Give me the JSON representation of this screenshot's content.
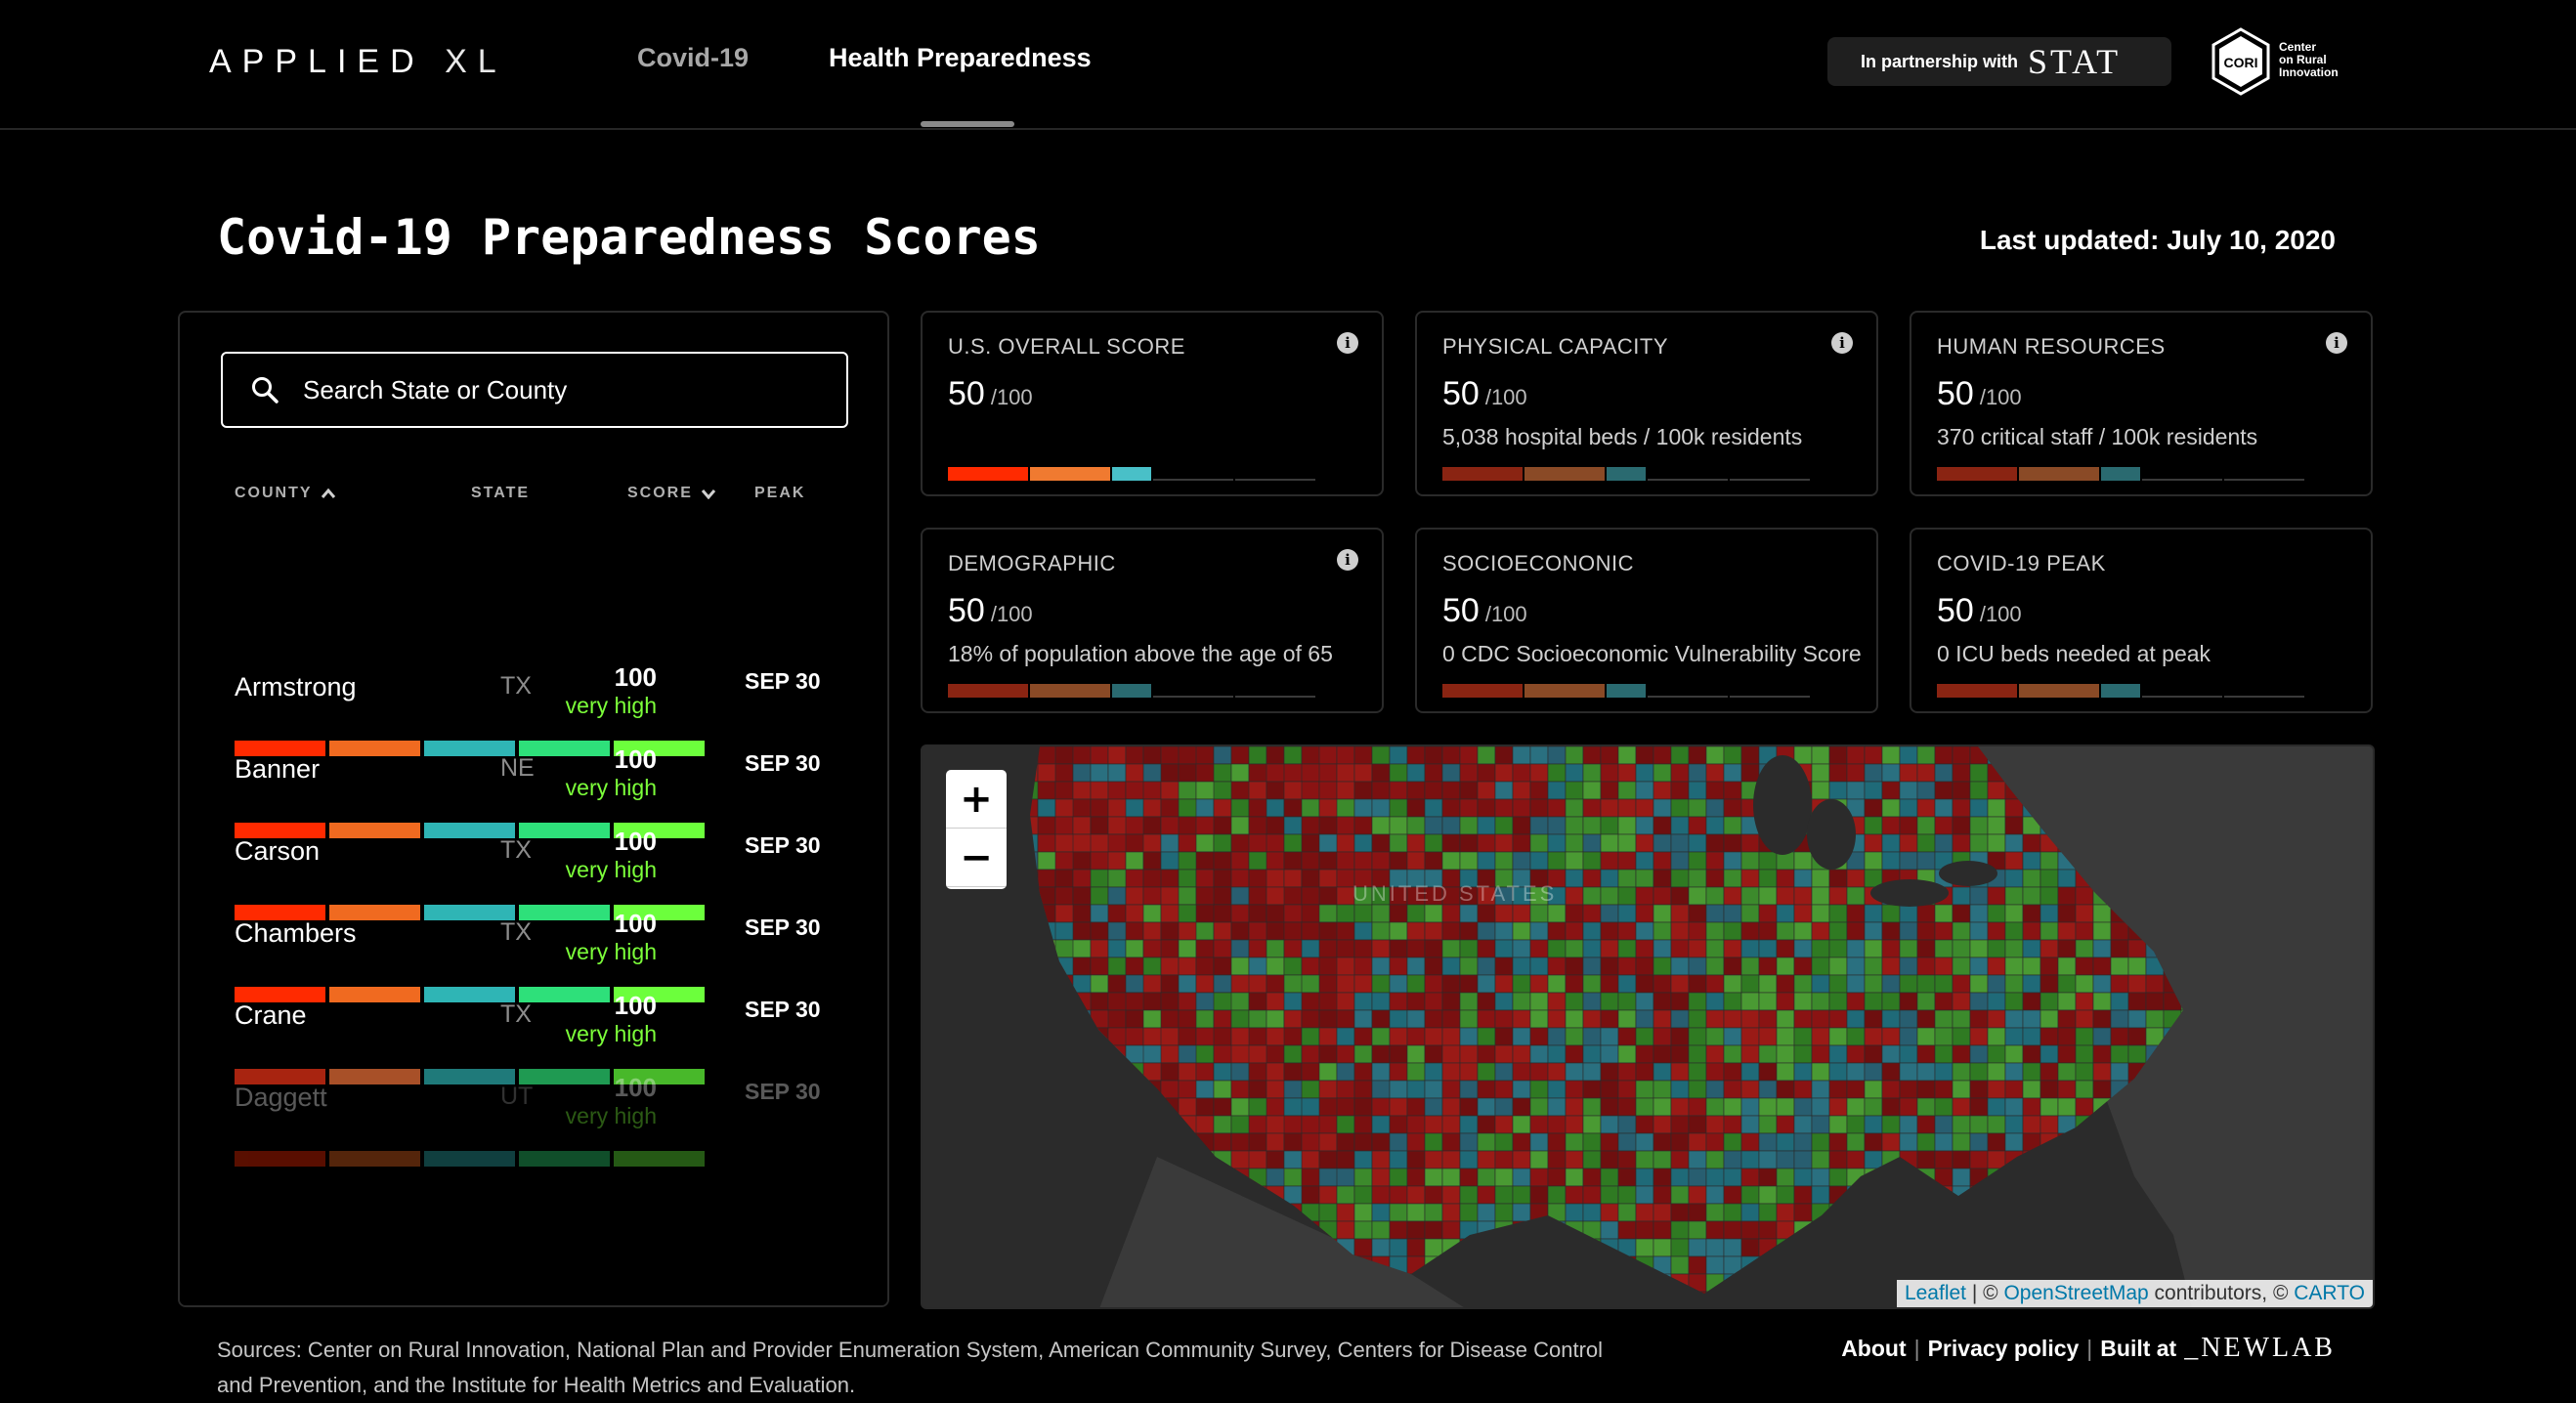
{
  "header": {
    "logo_main": "APPLIED",
    "logo_xl": "XL",
    "tabs": [
      "Covid-19",
      "Health Preparedness"
    ],
    "partner_text": "In partnership with",
    "partner_brand": "STAT",
    "cori_mark": "CORI",
    "cori_lines": [
      "Center",
      "on Rural",
      "Innovation"
    ]
  },
  "title": "Covid-19 Preparedness Scores",
  "last_updated": "Last updated: July 10, 2020",
  "search": {
    "placeholder": "Search State or County"
  },
  "table": {
    "columns": [
      "COUNTY",
      "STATE",
      "SCORE",
      "PEAK"
    ],
    "rows": [
      {
        "county": "Armstrong",
        "state": "TX",
        "score": "100",
        "level": "very high",
        "peak": "SEP 30"
      },
      {
        "county": "Banner",
        "state": "NE",
        "score": "100",
        "level": "very high",
        "peak": "SEP 30"
      },
      {
        "county": "Carson",
        "state": "TX",
        "score": "100",
        "level": "very high",
        "peak": "SEP 30"
      },
      {
        "county": "Chambers",
        "state": "TX",
        "score": "100",
        "level": "very high",
        "peak": "SEP 30"
      },
      {
        "county": "Crane",
        "state": "TX",
        "score": "100",
        "level": "very high",
        "peak": "SEP 30"
      },
      {
        "county": "Daggett",
        "state": "UT",
        "score": "100",
        "level": "very high",
        "peak": "SEP 30"
      }
    ]
  },
  "cards": [
    {
      "title": "U.S. OVERALL SCORE",
      "score": "50",
      "denom": "/100",
      "desc": "",
      "info": true
    },
    {
      "title": "PHYSICAL CAPACITY",
      "score": "50",
      "denom": "/100",
      "desc": "5,038 hospital beds / 100k residents",
      "info": true
    },
    {
      "title": "HUMAN RESOURCES",
      "score": "50",
      "denom": "/100",
      "desc": "370 critical staff / 100k residents",
      "info": true
    },
    {
      "title": "DEMOGRAPHIC",
      "score": "50",
      "denom": "/100",
      "desc": "18% of population above the age of 65",
      "info": true
    },
    {
      "title": "SOCIOECONONIC",
      "score": "50",
      "denom": "/100",
      "desc": "0 CDC Socioeconomic Vulnerability Score",
      "info": false
    },
    {
      "title": "COVID-19 PEAK",
      "score": "50",
      "denom": "/100",
      "desc": "0 ICU beds needed at peak",
      "info": false
    }
  ],
  "map": {
    "zoom_in": "+",
    "zoom_out": "−",
    "attribution_leaflet": "Leaflet",
    "attribution_sep": " | © ",
    "attribution_osm": "OpenStreetMap",
    "attribution_mid": " contributors, © ",
    "attribution_carto": "CARTO",
    "country_label": "UNITED STATES"
  },
  "footer": {
    "sources": "Sources: Center on Rural Innovation, National Plan and Provider Enumeration System, American Community Survey, Centers for Disease Control and Prevention, and the Institute for Health Metrics and Evaluation.",
    "about": "About",
    "privacy": "Privacy policy",
    "built_at": "Built at",
    "newlab": "_NEWLAB"
  },
  "colors": {
    "bar_bright": [
      "#ff2a00",
      "#f06a20",
      "#2fb5b5",
      "#2ee07a",
      "#6cff3c"
    ],
    "bar_dim": [
      "#a82410",
      "#a85028",
      "#1f7a7a",
      "#1f9a52",
      "#48b82a"
    ],
    "card_bar_bright": [
      "#ff2a00",
      "#f07a30",
      "#49c0c8"
    ],
    "card_bar_dim": [
      "#8a2412",
      "#8a4a26",
      "#2a6a70"
    ]
  }
}
